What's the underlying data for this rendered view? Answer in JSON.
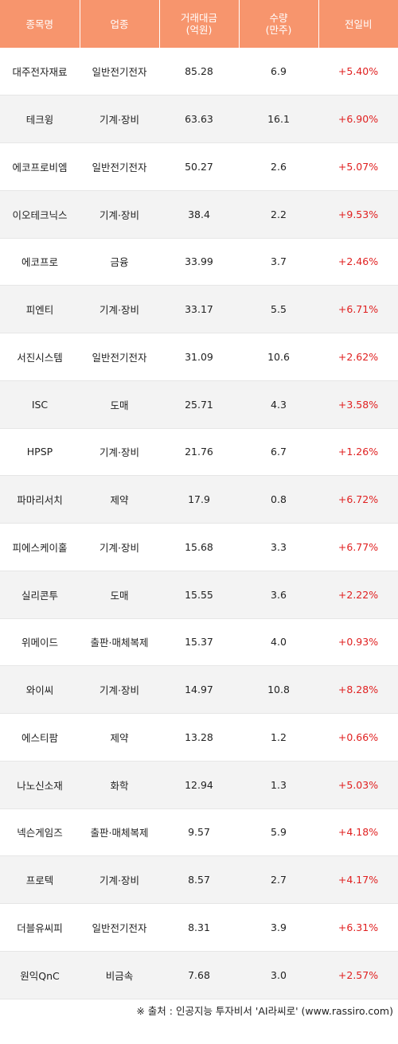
{
  "table": {
    "headers": [
      "종목명",
      "업종",
      "거래대금\n(억원)",
      "수량\n(만주)",
      "전일비"
    ],
    "rows": [
      [
        "대주전자재료",
        "일반전기전자",
        "85.28",
        "6.9",
        "+5.40%"
      ],
      [
        "테크윙",
        "기계·장비",
        "63.63",
        "16.1",
        "+6.90%"
      ],
      [
        "에코프로비엠",
        "일반전기전자",
        "50.27",
        "2.6",
        "+5.07%"
      ],
      [
        "이오테크닉스",
        "기계·장비",
        "38.4",
        "2.2",
        "+9.53%"
      ],
      [
        "에코프로",
        "금융",
        "33.99",
        "3.7",
        "+2.46%"
      ],
      [
        "피엔티",
        "기계·장비",
        "33.17",
        "5.5",
        "+6.71%"
      ],
      [
        "서진시스템",
        "일반전기전자",
        "31.09",
        "10.6",
        "+2.62%"
      ],
      [
        "ISC",
        "도매",
        "25.71",
        "4.3",
        "+3.58%"
      ],
      [
        "HPSP",
        "기계·장비",
        "21.76",
        "6.7",
        "+1.26%"
      ],
      [
        "파마리서치",
        "제약",
        "17.9",
        "0.8",
        "+6.72%"
      ],
      [
        "피에스케이홀",
        "기계·장비",
        "15.68",
        "3.3",
        "+6.77%"
      ],
      [
        "실리콘투",
        "도매",
        "15.55",
        "3.6",
        "+2.22%"
      ],
      [
        "위메이드",
        "출판·매체복제",
        "15.37",
        "4.0",
        "+0.93%"
      ],
      [
        "와이씨",
        "기계·장비",
        "14.97",
        "10.8",
        "+8.28%"
      ],
      [
        "에스티팜",
        "제약",
        "13.28",
        "1.2",
        "+0.66%"
      ],
      [
        "나노신소재",
        "화학",
        "12.94",
        "1.3",
        "+5.03%"
      ],
      [
        "넥슨게임즈",
        "출판·매체복제",
        "9.57",
        "5.9",
        "+4.18%"
      ],
      [
        "프로텍",
        "기계·장비",
        "8.57",
        "2.7",
        "+4.17%"
      ],
      [
        "더블유씨피",
        "일반전기전자",
        "8.31",
        "3.9",
        "+6.31%"
      ],
      [
        "원익QnC",
        "비금속",
        "7.68",
        "3.0",
        "+2.57%"
      ]
    ]
  },
  "footer": {
    "source": "※ 출처 : 인공지능 투자비서 'AI라씨로' (www.rassiro.com)"
  },
  "colors": {
    "header_bg": "#f7956d",
    "header_text": "#ffffff",
    "positive_change": "#e02020",
    "stripe": "#f3f3f3"
  }
}
